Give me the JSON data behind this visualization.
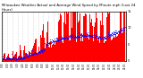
{
  "title": "Milwaukee Weather Actual and Average Wind Speed by Minute mph (Last 24 Hours)",
  "background_color": "#ffffff",
  "bar_color": "#ff0000",
  "dot_color": "#0000ff",
  "ylim": [
    0,
    15
  ],
  "n_points": 1440,
  "num_xticks": 25,
  "grid_color": "#bbbbbb",
  "title_fontsize": 2.8,
  "tick_fontsize": 2.5,
  "ytick_labels": [
    "15",
    "10",
    "5",
    "0"
  ],
  "ytick_values": [
    15,
    10,
    5,
    0
  ]
}
